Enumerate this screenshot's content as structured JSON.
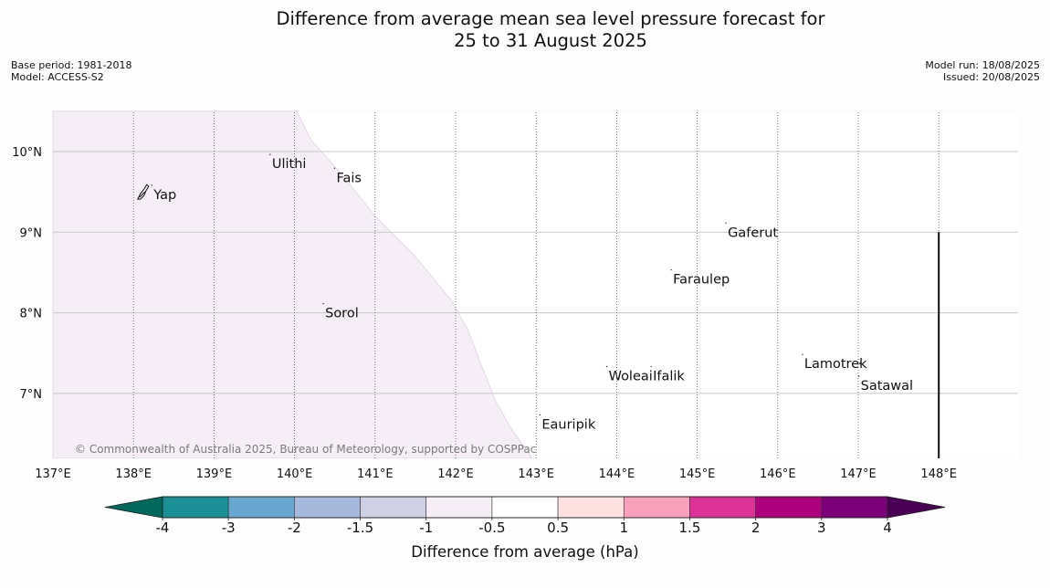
{
  "title": {
    "line1": "Difference from average mean sea level pressure forecast for",
    "line2": "25 to 31 August 2025"
  },
  "meta_left": {
    "base_period": "Base period: 1981-2018",
    "model": "Model: ACCESS-S2"
  },
  "meta_right": {
    "model_run": "Model run: 18/08/2025",
    "issued": "Issued: 20/08/2025"
  },
  "map": {
    "lon_range": [
      137,
      149
    ],
    "lat_range": [
      6.2,
      10.5
    ],
    "lat_labels": [
      "10°N",
      "9°N",
      "8°N",
      "7°N"
    ],
    "lon_labels": [
      "137°E",
      "138°E",
      "139°E",
      "140°E",
      "141°E",
      "142°E",
      "143°E",
      "144°E",
      "145°E",
      "146°E",
      "147°E",
      "148°E"
    ],
    "anomaly_region": {
      "category": "-0.5 to -1",
      "color": "#f5eef6",
      "boundary": [
        [
          137,
          10.5
        ],
        [
          140.03,
          10.5
        ],
        [
          140.2,
          10.15
        ],
        [
          140.6,
          9.7
        ],
        [
          141.0,
          9.2
        ],
        [
          141.5,
          8.7
        ],
        [
          141.95,
          8.15
        ],
        [
          142.15,
          7.8
        ],
        [
          142.3,
          7.4
        ],
        [
          142.5,
          6.9
        ],
        [
          142.7,
          6.55
        ],
        [
          142.95,
          6.2
        ],
        [
          137,
          6.2
        ]
      ]
    },
    "places": [
      {
        "name": "Yap",
        "lon": 138.25,
        "lat": 9.47
      },
      {
        "name": "Ulithi",
        "lon": 139.72,
        "lat": 9.85
      },
      {
        "name": "Fais",
        "lon": 140.52,
        "lat": 9.68
      },
      {
        "name": "Sorol",
        "lon": 140.38,
        "lat": 8.0
      },
      {
        "name": "Gaferut",
        "lon": 145.38,
        "lat": 9.0
      },
      {
        "name": "Faraulep",
        "lon": 144.7,
        "lat": 8.42
      },
      {
        "name": "Woleai",
        "lon": 143.9,
        "lat": 7.22
      },
      {
        "name": "Ifalik",
        "lon": 144.45,
        "lat": 7.22
      },
      {
        "name": "Lamotrek",
        "lon": 146.33,
        "lat": 7.37
      },
      {
        "name": "Satawal",
        "lon": 147.03,
        "lat": 7.1
      },
      {
        "name": "Eauripik",
        "lon": 143.07,
        "lat": 6.62
      }
    ],
    "boundary_line": {
      "lon": 148.0,
      "lat_from": 9.0,
      "lat_to": 6.2
    },
    "copyright": "© Commonwealth of Australia 2025, Bureau of Meteorology, supported by COSPPac"
  },
  "colorbar": {
    "title": "Difference from average (hPa)",
    "ticks": [
      "-4",
      "-3",
      "-2",
      "-1.5",
      "-1",
      "-0.5",
      "0.5",
      "1",
      "1.5",
      "2",
      "3",
      "4"
    ],
    "low_extend_color": "#00695c",
    "high_extend_color": "#4a0055",
    "bins": [
      "#1a8f95",
      "#68a8d0",
      "#a6b8dc",
      "#cfd0e4",
      "#f5eef6",
      "#ffffff",
      "#fde0e0",
      "#f9a0bd",
      "#dd3399",
      "#ae017e",
      "#7a0177"
    ]
  }
}
